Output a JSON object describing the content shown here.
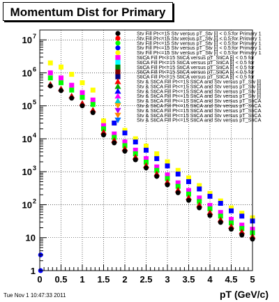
{
  "chart_data": {
    "type": "scatter",
    "title": "Momentum Dist for Primary",
    "xlabel": "pT (GeV/c)",
    "ylabel": "",
    "xlim": [
      0,
      5
    ],
    "ylim_log10": [
      0,
      7.3
    ],
    "yscale": "log",
    "grid": true,
    "x_ticks": [
      "0",
      "0.5",
      "1",
      "1.5",
      "2",
      "2.5",
      "3",
      "3.5",
      "4",
      "4.5",
      "5"
    ],
    "y_ticks": [
      {
        "base": "1",
        "exp": ""
      },
      {
        "base": "10",
        "exp": ""
      },
      {
        "base": "10",
        "exp": "2"
      },
      {
        "base": "10",
        "exp": "3"
      },
      {
        "base": "10",
        "exp": "4"
      },
      {
        "base": "10",
        "exp": "5"
      },
      {
        "base": "10",
        "exp": "6"
      },
      {
        "base": "10",
        "exp": "7"
      }
    ],
    "legend_placement": "top-right",
    "legend": [
      {
        "label": "Stv Fill Pt<=15 Stv versus pT_Stv [i] < 0.5 for Primary 1",
        "color": "#000000",
        "marker": "circle"
      },
      {
        "label": "Stv Fill Pt<=15 Stv versus pT_Stv [i] < 0.5 for Primary 1",
        "color": "#ff0000",
        "marker": "circle"
      },
      {
        "label": "Stv Fill Pt<=15 Stv versus pT_Stv [i] < 0.5 for Primary 1",
        "color": "#00ff00",
        "marker": "circle"
      },
      {
        "label": "Stv Fill Pt<=15 Stv versus pT_Stv [i] < 0.5 for Primary 1",
        "color": "#0000ff",
        "marker": "circle"
      },
      {
        "label": "Stv Fill Pt<=15 Stv versus pT_Stv [i] < 0.5 for Primary 1",
        "color": "#ffff00",
        "marker": "circle"
      },
      {
        "label": "StiCA Fill Pt<=15 StiCA versus pT_StiCA [i] < 0.5 for",
        "color": "#ff00ff",
        "marker": "square"
      },
      {
        "label": "StiCA Fill Pt<=15 StiCA versus pT_StiCA [i] < 0.5 for",
        "color": "#00ffff",
        "marker": "square"
      },
      {
        "label": "StiCA Fill Pt<=15 StiCA versus pT_StiCA [i] < 0.5 for",
        "color": "#008000",
        "marker": "square"
      },
      {
        "label": "StiCA Fill Pt<=15 StiCA versus pT_StiCA [i] < 0.5 for",
        "color": "#800000",
        "marker": "square"
      },
      {
        "label": "StiCA Fill Pt<=15 StiCA versus pT_StiCA [i] < 0.5 for",
        "color": "#000080",
        "marker": "square"
      },
      {
        "label": "Stv & StiCA Fill Pt<=15 StiCA and Stv versus pT_Stv [i]",
        "color": "#ff0000",
        "marker": "triangle"
      },
      {
        "label": "Stv & StiCA Fill Pt<=15 StiCA and Stv versus pT_Stv [i]",
        "color": "#00aa00",
        "marker": "triangle"
      },
      {
        "label": "Stv & StiCA Fill Pt<=15 StiCA and Stv versus pT_Stv [i]",
        "color": "#0000ff",
        "marker": "triangle"
      },
      {
        "label": "Stv & StiCA Fill Pt<=15 StiCA and Stv versus pT_Stv [i]",
        "color": "#ff00ff",
        "marker": "triangle"
      },
      {
        "label": "Stv & StiCA Fill Pt<=15 StiCA and Stv versus pT_StiCA",
        "color": "#00cccc",
        "marker": "triangle"
      },
      {
        "label": "Stv & StiCA Fill Pt<=15 StiCA and Stv versus pT_StiCA",
        "color": "#ffaa00",
        "marker": "triangle-down"
      },
      {
        "label": "Stv & StiCA Fill Pt<=15 StiCA and Stv versus pT_StiCA",
        "color": "#aa00ff",
        "marker": "triangle-down"
      },
      {
        "label": "Stv & StiCA Fill Pt<=15 StiCA and Stv versus pT_StiCA",
        "color": "#ff8800",
        "marker": "triangle-down"
      },
      {
        "label": "Stv & StiCA Fill Pt<=15 StiCA and Stv versus pT_StiCA",
        "color": "#0066ff",
        "marker": "triangle-down"
      }
    ],
    "series": [
      {
        "name": "yellow",
        "color": "#ffff00",
        "marker": "square",
        "x": [
          0.25,
          0.5,
          0.75,
          1.0,
          1.25,
          1.5,
          1.75,
          2.0,
          2.25,
          2.5,
          2.75,
          3.0,
          3.25,
          3.5,
          3.75,
          4.0,
          4.25,
          4.5,
          4.75,
          5.0
        ],
        "y": [
          2000000,
          1500000,
          900000,
          500000,
          300000,
          35000,
          30000,
          18000,
          10000,
          6000,
          3500,
          2000,
          1100,
          650,
          380,
          220,
          130,
          80,
          55,
          40
        ]
      },
      {
        "name": "blue",
        "color": "#0000ff",
        "marker": "square",
        "x": [
          1.75,
          2.0,
          2.25,
          2.5,
          2.75,
          3.0,
          3.25,
          3.5,
          3.75,
          4.0,
          4.25,
          4.5,
          4.75,
          5.0
        ],
        "y": [
          30000,
          15000,
          8000,
          4500,
          2500,
          1500,
          850,
          500,
          300,
          180,
          110,
          65,
          45,
          32
        ]
      },
      {
        "name": "magenta",
        "color": "#ff00ff",
        "marker": "square",
        "x": [
          0.25,
          0.5,
          0.75,
          1.0,
          1.25,
          1.5,
          1.75,
          2.0,
          2.25,
          2.5,
          2.75,
          3.0,
          3.25,
          3.5,
          3.75,
          4.0,
          4.25,
          4.5,
          4.75,
          5.0
        ],
        "y": [
          1000000,
          700000,
          420000,
          250000,
          150000,
          25000,
          14000,
          8000,
          4500,
          2500,
          1400,
          800,
          460,
          270,
          160,
          95,
          58,
          36,
          24,
          18
        ]
      },
      {
        "name": "green",
        "color": "#00ff00",
        "marker": "square",
        "x": [
          0.25,
          0.5,
          0.75,
          1.0,
          1.25,
          1.5,
          1.75,
          2.0,
          2.25,
          2.5,
          2.75,
          3.0,
          3.25,
          3.5,
          3.75,
          4.0,
          4.25,
          4.5,
          4.75,
          5.0
        ],
        "y": [
          700000,
          500000,
          300000,
          180000,
          110000,
          20000,
          11000,
          6200,
          3500,
          1950,
          1100,
          620,
          360,
          210,
          125,
          75,
          45,
          28,
          19,
          14
        ]
      },
      {
        "name": "red",
        "color": "#cc0000",
        "marker": "triangle",
        "x": [
          0.25,
          0.5,
          0.75,
          1.0,
          1.25,
          1.5,
          1.75,
          2.0,
          2.25,
          2.5,
          2.75,
          3.0,
          3.25,
          3.5,
          3.75,
          4.0,
          4.25,
          4.5,
          4.75,
          5.0
        ],
        "y": [
          450000,
          330000,
          200000,
          120000,
          75000,
          16000,
          9000,
          5000,
          2800,
          1550,
          870,
          490,
          280,
          165,
          98,
          58,
          35,
          22,
          15,
          11
        ]
      },
      {
        "name": "black",
        "color": "#000000",
        "marker": "circle",
        "x": [
          0.25,
          0.5,
          0.75,
          1.0,
          1.25,
          1.5,
          1.75,
          2.0,
          2.25,
          2.5,
          2.75,
          3.0,
          3.25,
          3.5,
          3.75,
          4.0,
          4.25,
          4.5,
          4.75,
          5.0
        ],
        "y": [
          400000,
          290000,
          170000,
          100000,
          62000,
          13000,
          7500,
          4200,
          2300,
          1300,
          720,
          400,
          230,
          135,
          80,
          47,
          29,
          18,
          12,
          9
        ]
      },
      {
        "name": "blue-low",
        "color": "#0000ff",
        "marker": "circle",
        "x": [
          0.02,
          0.02
        ],
        "y": [
          1,
          3
        ]
      }
    ]
  },
  "footer": {
    "timestamp": "Tue Nov  1 10:47:33 2011"
  }
}
